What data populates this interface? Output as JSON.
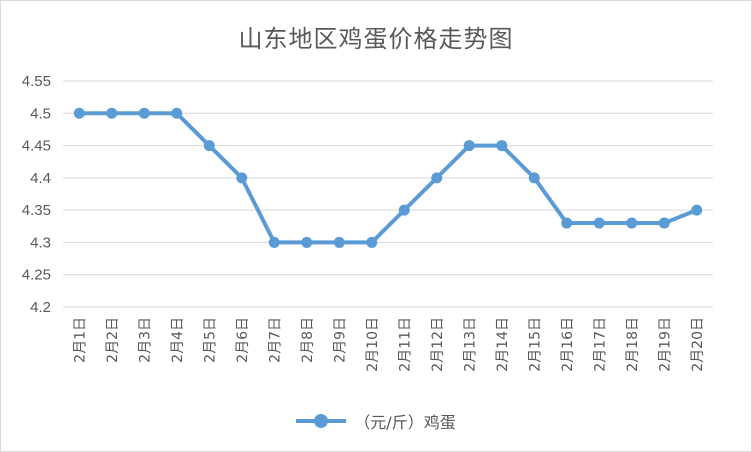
{
  "chart_data": {
    "type": "line",
    "title": "山东地区鸡蛋价格走势图",
    "categories": [
      "2月1日",
      "2月2日",
      "2月3日",
      "2月4日",
      "2月5日",
      "2月6日",
      "2月7日",
      "2月8日",
      "2月9日",
      "2月10日",
      "2月11日",
      "2月12日",
      "2月13日",
      "2月14日",
      "2月15日",
      "2月16日",
      "2月17日",
      "2月18日",
      "2月19日",
      "2月20日"
    ],
    "series": [
      {
        "name": "（元/斤）鸡蛋",
        "values": [
          4.5,
          4.5,
          4.5,
          4.5,
          4.45,
          4.4,
          4.3,
          4.3,
          4.3,
          4.3,
          4.35,
          4.4,
          4.45,
          4.45,
          4.4,
          4.33,
          4.33,
          4.33,
          4.33,
          4.35
        ],
        "color": "#5b9bd5"
      }
    ],
    "yticks": [
      "4.2",
      "4.25",
      "4.3",
      "4.35",
      "4.4",
      "4.45",
      "4.5",
      "4.55"
    ],
    "ylim": [
      4.2,
      4.55
    ],
    "grid": true,
    "legend_position": "bottom"
  }
}
